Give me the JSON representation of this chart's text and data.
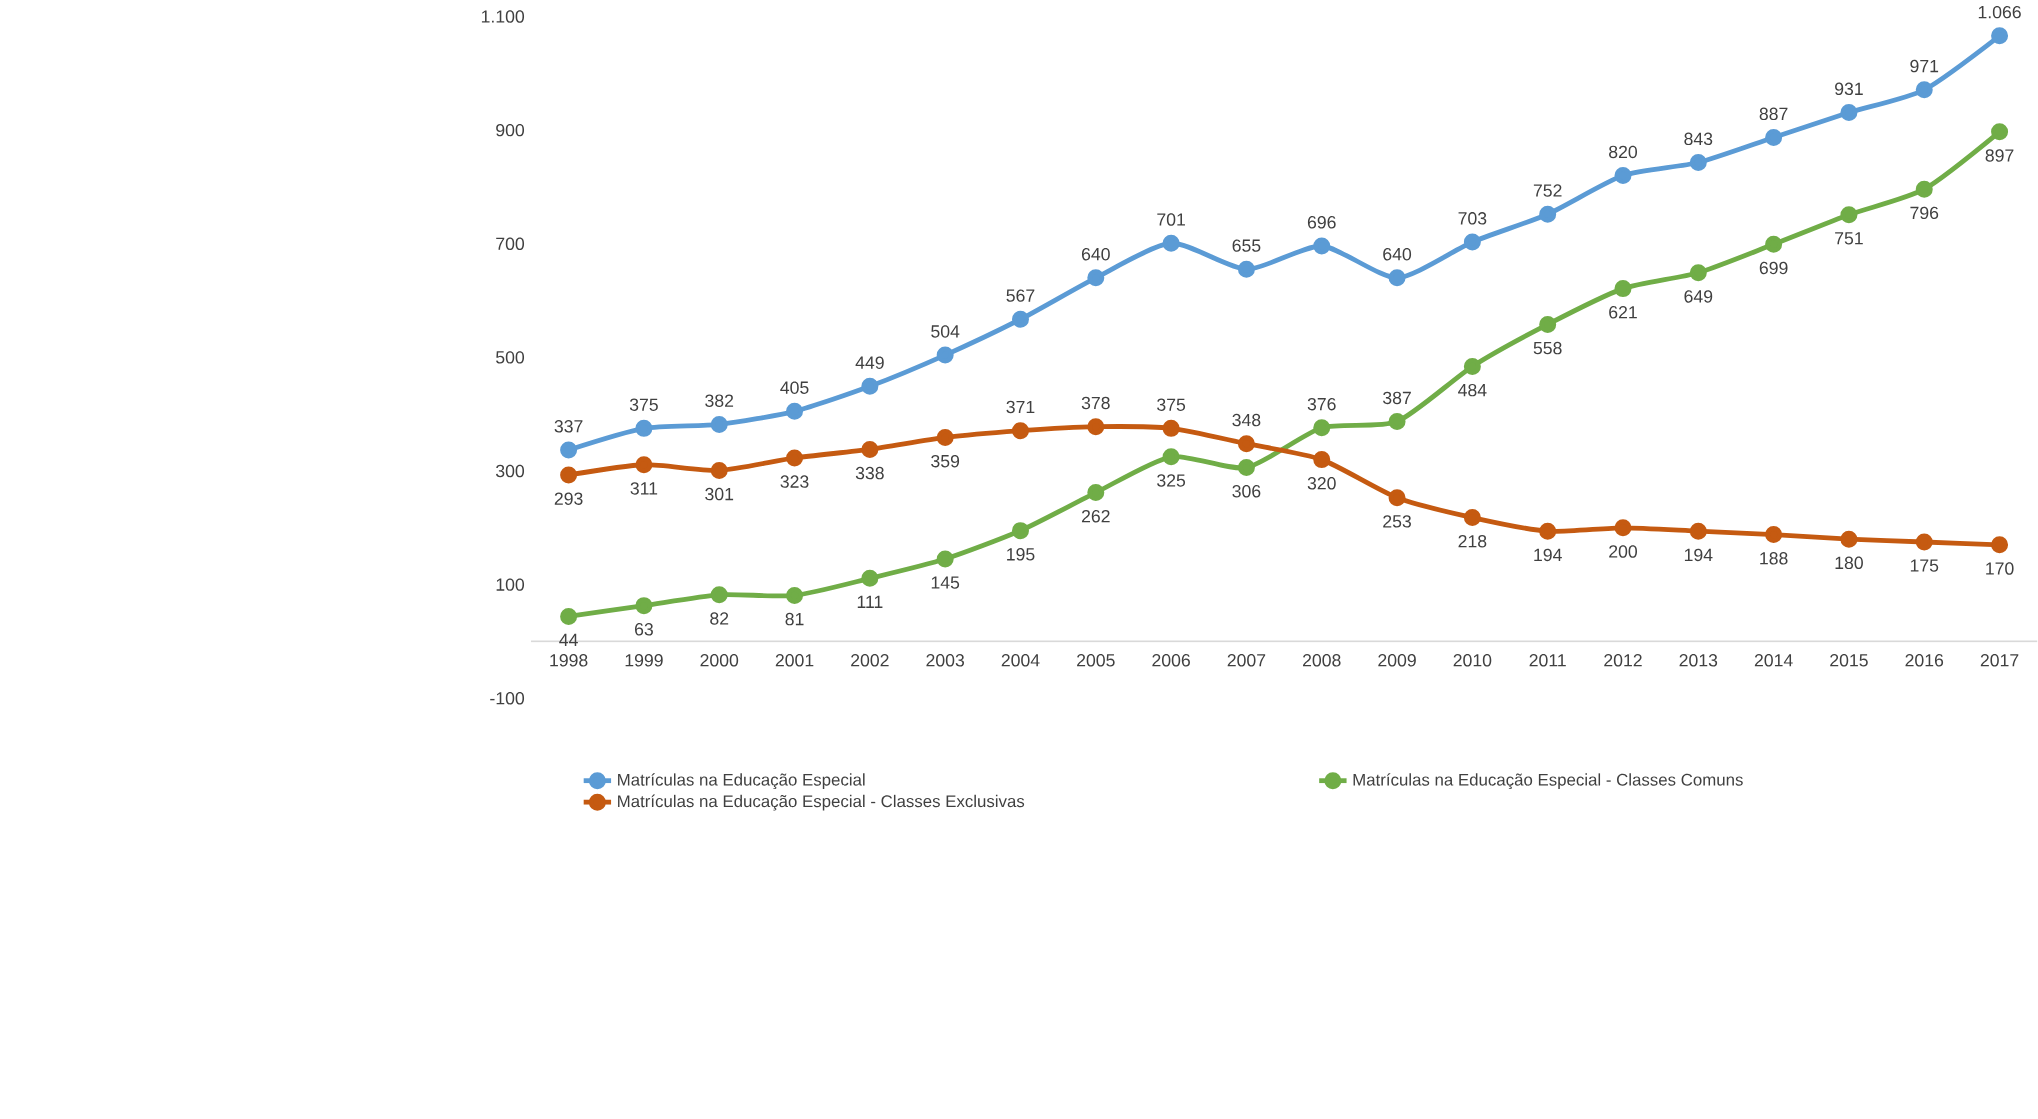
{
  "chart_data": {
    "type": "line",
    "categories": [
      "1998",
      "1999",
      "2000",
      "2001",
      "2002",
      "2003",
      "2004",
      "2005",
      "2006",
      "2007",
      "2008",
      "2009",
      "2010",
      "2011",
      "2012",
      "2013",
      "2014",
      "2015",
      "2016",
      "2017"
    ],
    "series": [
      {
        "name": "Matrículas na Educação Especial",
        "color": "#5b9bd5",
        "values": [
          337,
          375,
          382,
          405,
          449,
          504,
          567,
          640,
          701,
          655,
          696,
          640,
          703,
          752,
          820,
          843,
          887,
          931,
          971,
          1066
        ],
        "value_labels": [
          "337",
          "375",
          "382",
          "405",
          "449",
          "504",
          "567",
          "640",
          "701",
          "655",
          "696",
          "640",
          "703",
          "752",
          "820",
          "843",
          "887",
          "931",
          "971",
          "1.066"
        ]
      },
      {
        "name": "Matrículas na Educação Especial - Classes Comuns",
        "color": "#70ad47",
        "values": [
          44,
          63,
          82,
          81,
          111,
          145,
          195,
          262,
          325,
          306,
          376,
          387,
          484,
          558,
          621,
          649,
          699,
          751,
          796,
          897
        ],
        "value_labels": [
          "44",
          "63",
          "82",
          "81",
          "111",
          "145",
          "195",
          "262",
          "325",
          "306",
          "376",
          "387",
          "484",
          "558",
          "621",
          "649",
          "699",
          "751",
          "796",
          "897"
        ]
      },
      {
        "name": "Matrículas na Educação Especial - Classes Exclusivas",
        "color": "#c55a11",
        "values": [
          293,
          311,
          301,
          323,
          338,
          359,
          371,
          378,
          375,
          348,
          320,
          253,
          218,
          194,
          200,
          194,
          188,
          180,
          175,
          170
        ],
        "value_labels": [
          "293",
          "311",
          "301",
          "323",
          "338",
          "359",
          "371",
          "378",
          "375",
          "348",
          "320",
          "253",
          "218",
          "194",
          "200",
          "194",
          "188",
          "180",
          "175",
          "170"
        ]
      }
    ],
    "ylim": [
      -100,
      1100
    ],
    "yticks": [
      {
        "value": -100,
        "label": "-100"
      },
      {
        "value": 100,
        "label": "100"
      },
      {
        "value": 300,
        "label": "300"
      },
      {
        "value": 500,
        "label": "500"
      },
      {
        "value": 700,
        "label": "700"
      },
      {
        "value": 900,
        "label": "900"
      },
      {
        "value": 1100,
        "label": "1.100"
      }
    ],
    "marker": "circle",
    "line_style": "solid",
    "legend": "bottom"
  }
}
